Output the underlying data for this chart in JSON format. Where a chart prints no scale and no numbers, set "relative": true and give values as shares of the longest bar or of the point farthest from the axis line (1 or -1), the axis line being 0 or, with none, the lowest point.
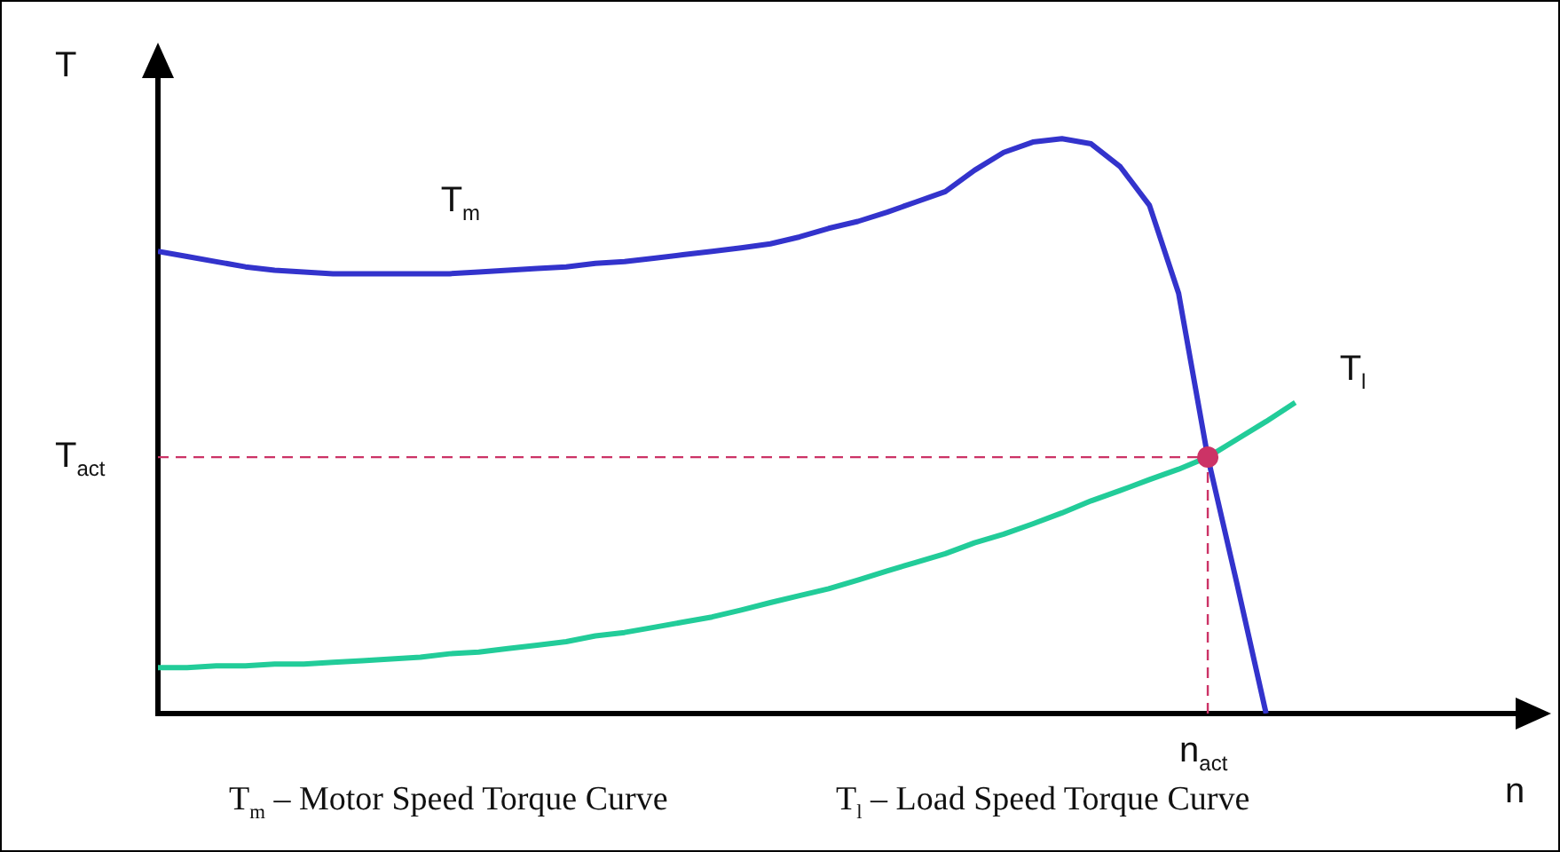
{
  "chart_data": {
    "type": "line",
    "relative": true,
    "ylabel": "T",
    "grid": false,
    "legend": false,
    "marker": "none",
    "categories": [
      null,
      null,
      null,
      null,
      null,
      null,
      null,
      null,
      null,
      null,
      null,
      null,
      null,
      null,
      null,
      null,
      null,
      null,
      null,
      null,
      null,
      null,
      null,
      null,
      null,
      null,
      null,
      null,
      null,
      null,
      null,
      null,
      null,
      null,
      null,
      null,
      null,
      null,
      null,
      null
    ],
    "series": [
      {
        "name": "T$_{m}$",
        "color": "#3333cc",
        "values": [
          0.804,
          0.795,
          0.786,
          0.777,
          0.771,
          0.768,
          0.765,
          0.765,
          0.765,
          0.765,
          0.765,
          0.768,
          0.771,
          0.774,
          0.777,
          0.783,
          0.786,
          0.792,
          0.798,
          0.804,
          0.81,
          0.817,
          0.829,
          0.844,
          0.856,
          0.872,
          0.89,
          0.908,
          0.945,
          0.976,
          0.994,
          1,
          0.991,
          0.951,
          0.884,
          0.731,
          0.446,
          0.226,
          0,
          null
        ]
      },
      {
        "name": "T$_{l}$",
        "color": "#22cc99",
        "values": [
          0.08,
          0.08,
          0.083,
          0.083,
          0.086,
          0.086,
          0.089,
          0.092,
          0.095,
          0.098,
          0.104,
          0.107,
          0.113,
          0.119,
          0.125,
          0.135,
          0.141,
          0.15,
          0.159,
          0.168,
          0.18,
          0.193,
          0.205,
          0.217,
          0.232,
          0.248,
          0.263,
          0.278,
          0.297,
          0.312,
          0.33,
          0.349,
          0.37,
          0.388,
          0.407,
          0.425,
          0.446,
          0.477,
          0.508,
          0.541
        ]
      }
    ],
    "ref_lines": [
      {
        "axis": "y",
        "value": 0.446,
        "label": "T$_{act}$",
        "color": "#cc3366",
        "line_style": "dashed"
      }
    ],
    "annotations": [
      "T$_{m}$ – Motor Speed Torque Curve",
      "T$_{l}$ – Load Speed Torque Curve",
      "n$_{act}$",
      "n"
    ]
  }
}
